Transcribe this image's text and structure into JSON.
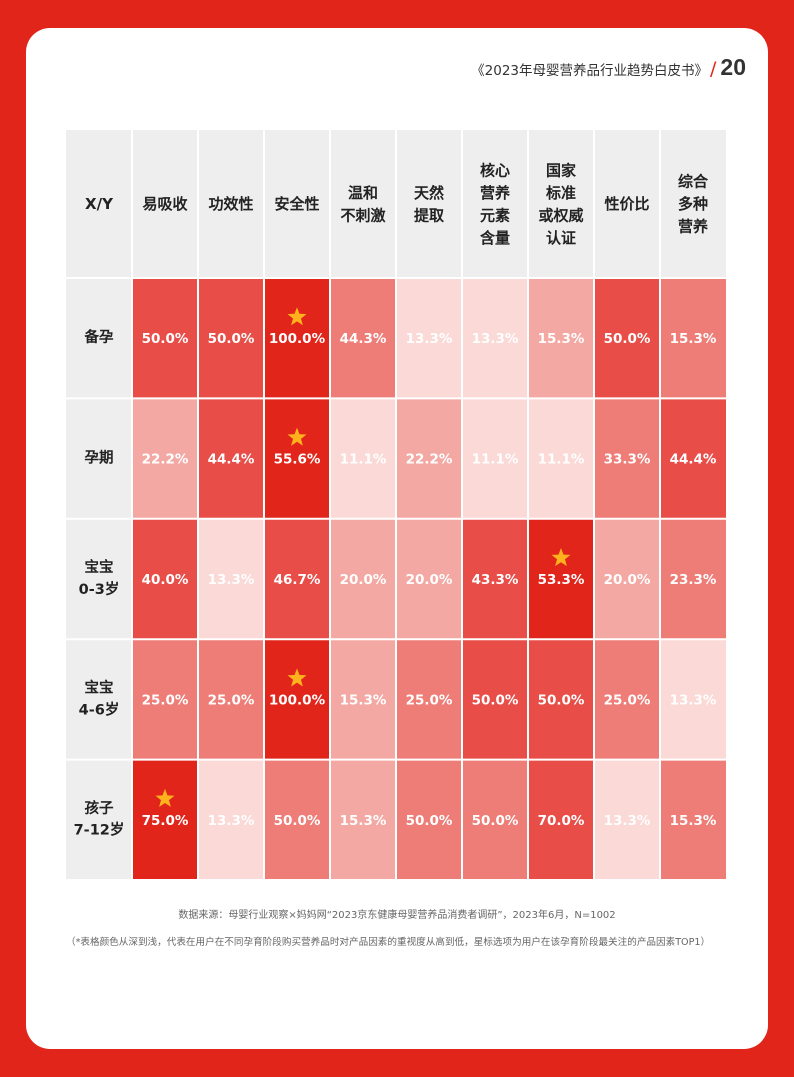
{
  "header": {
    "title": "《2023年母婴营养品行业趋势白皮书》",
    "slash": "/",
    "page": "20"
  },
  "footer": {
    "source": "数据来源：母婴行业观察×妈妈网“2023京东健康母婴营养品消费者调研”，2023年6月，N=1002",
    "note": "（*表格颜色从深到浅，代表在用户在不同孕育阶段购买营养品时对产品因素的重视度从高到低，星标选项为用户在该孕育阶段最关注的产品因素TOP1）"
  },
  "colors": {
    "page_bg": "#e1251b",
    "header_bg": "#eeeeee",
    "grid_line": "#ffffff",
    "star": "#ffb21e",
    "scale": [
      "#fad9d6",
      "#f4a8a3",
      "#ee7c77",
      "#e84d48",
      "#e1251b"
    ]
  },
  "chart_data": {
    "type": "heatmap",
    "corner_label": "X/Y",
    "columns": [
      [
        "易吸收"
      ],
      [
        "功效性"
      ],
      [
        "安全性"
      ],
      [
        "温和",
        "不刺激"
      ],
      [
        "天然",
        "提取"
      ],
      [
        "核心",
        "营养",
        "元素",
        "含量"
      ],
      [
        "国家",
        "标准",
        "或权威",
        "认证"
      ],
      [
        "性价比"
      ],
      [
        "综合",
        "多种",
        "营养"
      ]
    ],
    "rows": [
      {
        "label": [
          "备孕"
        ],
        "values": [
          "50.0%",
          "50.0%",
          "100.0%",
          "44.3%",
          "13.3%",
          "13.3%",
          "15.3%",
          "50.0%",
          "15.3%"
        ],
        "shade": [
          3,
          3,
          4,
          2,
          0,
          0,
          1,
          3,
          2
        ],
        "star_index": 2
      },
      {
        "label": [
          "孕期"
        ],
        "values": [
          "22.2%",
          "44.4%",
          "55.6%",
          "11.1%",
          "22.2%",
          "11.1%",
          "11.1%",
          "33.3%",
          "44.4%"
        ],
        "shade": [
          1,
          3,
          4,
          0,
          1,
          0,
          0,
          2,
          3
        ],
        "star_index": 2
      },
      {
        "label": [
          "宝宝",
          "0-3岁"
        ],
        "values": [
          "40.0%",
          "13.3%",
          "46.7%",
          "20.0%",
          "20.0%",
          "43.3%",
          "53.3%",
          "20.0%",
          "23.3%"
        ],
        "shade": [
          3,
          0,
          3,
          1,
          1,
          3,
          4,
          1,
          2
        ],
        "star_index": 6
      },
      {
        "label": [
          "宝宝",
          "4-6岁"
        ],
        "values": [
          "25.0%",
          "25.0%",
          "100.0%",
          "15.3%",
          "25.0%",
          "50.0%",
          "50.0%",
          "25.0%",
          "13.3%"
        ],
        "shade": [
          2,
          2,
          4,
          1,
          2,
          3,
          3,
          2,
          0
        ],
        "star_index": 2
      },
      {
        "label": [
          "孩子",
          "7-12岁"
        ],
        "values": [
          "75.0%",
          "13.3%",
          "50.0%",
          "15.3%",
          "50.0%",
          "50.0%",
          "70.0%",
          "13.3%",
          "15.3%"
        ],
        "shade": [
          4,
          0,
          2,
          1,
          2,
          2,
          3,
          0,
          2
        ],
        "star_index": 0
      }
    ]
  }
}
